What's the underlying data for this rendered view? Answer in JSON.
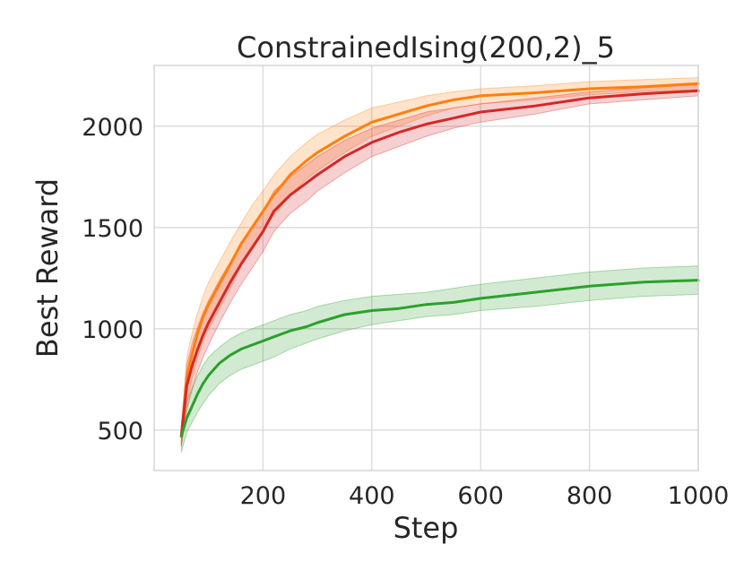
{
  "chart_data": {
    "type": "line",
    "title": "ConstrainedIsing(200,2)_5",
    "xlabel": "Step",
    "ylabel": "Best Reward",
    "xlim": [
      0,
      1000
    ],
    "ylim": [
      300,
      2300
    ],
    "xticks": [
      200,
      400,
      600,
      800,
      1000
    ],
    "yticks": [
      500,
      1000,
      1500,
      2000
    ],
    "grid": true,
    "legend": "none",
    "colors": {
      "orange": "#ff7f0e",
      "red": "#d62728",
      "green": "#2ca02c"
    },
    "series": [
      {
        "color": "#ff7f0e",
        "x": [
          50,
          60,
          70,
          80,
          90,
          100,
          120,
          140,
          160,
          180,
          200,
          220,
          250,
          280,
          300,
          350,
          400,
          450,
          500,
          550,
          600,
          700,
          800,
          900,
          1000
        ],
        "y": [
          470,
          760,
          880,
          980,
          1060,
          1120,
          1220,
          1320,
          1420,
          1500,
          1580,
          1660,
          1760,
          1830,
          1870,
          1950,
          2020,
          2060,
          2100,
          2130,
          2150,
          2165,
          2185,
          2195,
          2210
        ],
        "lower": [
          420,
          630,
          760,
          860,
          940,
          1000,
          1100,
          1200,
          1310,
          1400,
          1480,
          1560,
          1660,
          1740,
          1780,
          1870,
          1950,
          2000,
          2050,
          2090,
          2110,
          2130,
          2155,
          2170,
          2180
        ],
        "upper": [
          520,
          860,
          980,
          1080,
          1160,
          1230,
          1330,
          1430,
          1520,
          1610,
          1680,
          1760,
          1850,
          1920,
          1960,
          2030,
          2090,
          2120,
          2150,
          2170,
          2185,
          2200,
          2220,
          2230,
          2240
        ]
      },
      {
        "color": "#d62728",
        "x": [
          50,
          60,
          70,
          80,
          90,
          100,
          120,
          140,
          160,
          180,
          200,
          220,
          250,
          280,
          300,
          350,
          400,
          450,
          500,
          550,
          600,
          700,
          800,
          900,
          1000
        ],
        "y": [
          470,
          720,
          820,
          900,
          970,
          1030,
          1130,
          1230,
          1320,
          1400,
          1480,
          1580,
          1660,
          1720,
          1760,
          1850,
          1920,
          1970,
          2010,
          2040,
          2070,
          2100,
          2140,
          2160,
          2175
        ],
        "lower": [
          420,
          600,
          700,
          790,
          860,
          920,
          1030,
          1130,
          1220,
          1300,
          1380,
          1480,
          1570,
          1630,
          1680,
          1770,
          1850,
          1900,
          1950,
          1990,
          2020,
          2060,
          2110,
          2130,
          2150
        ],
        "upper": [
          520,
          820,
          930,
          1010,
          1080,
          1140,
          1240,
          1330,
          1420,
          1500,
          1580,
          1680,
          1750,
          1810,
          1850,
          1930,
          1990,
          2030,
          2070,
          2090,
          2110,
          2140,
          2170,
          2190,
          2205
        ]
      },
      {
        "color": "#2ca02c",
        "x": [
          50,
          60,
          70,
          80,
          90,
          100,
          120,
          140,
          160,
          180,
          200,
          220,
          250,
          280,
          300,
          350,
          400,
          450,
          500,
          550,
          600,
          700,
          800,
          900,
          1000
        ],
        "y": [
          470,
          560,
          620,
          680,
          730,
          770,
          830,
          870,
          900,
          920,
          940,
          960,
          990,
          1010,
          1030,
          1070,
          1090,
          1100,
          1120,
          1130,
          1150,
          1180,
          1210,
          1230,
          1240
        ],
        "lower": [
          390,
          490,
          540,
          590,
          630,
          670,
          730,
          770,
          800,
          820,
          840,
          860,
          900,
          930,
          950,
          990,
          1020,
          1040,
          1060,
          1070,
          1090,
          1110,
          1140,
          1160,
          1170
        ],
        "upper": [
          530,
          640,
          710,
          770,
          820,
          860,
          910,
          950,
          980,
          1000,
          1020,
          1040,
          1070,
          1090,
          1110,
          1140,
          1160,
          1170,
          1180,
          1200,
          1220,
          1250,
          1280,
          1300,
          1310
        ]
      }
    ]
  }
}
